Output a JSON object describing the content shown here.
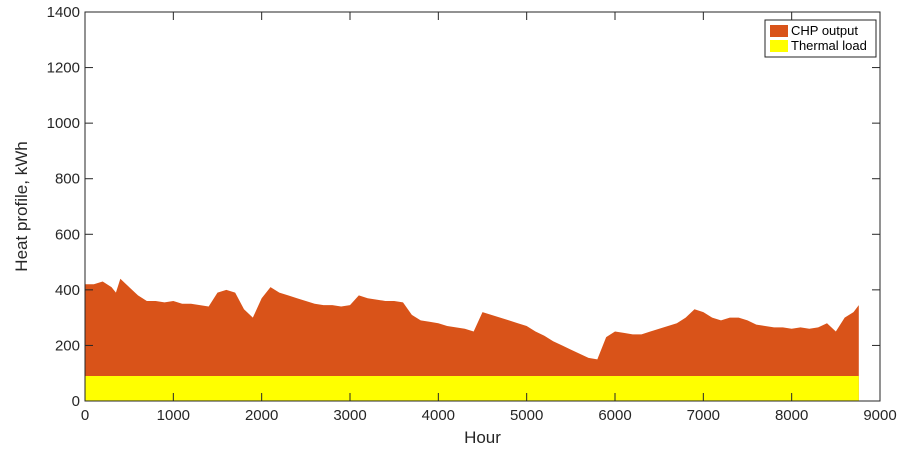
{
  "chart_data": {
    "type": "area",
    "title": "",
    "xlabel": "Hour",
    "ylabel": "Heat profile, kWh",
    "xlim": [
      0,
      9000
    ],
    "ylim": [
      0,
      1400
    ],
    "xticks": [
      0,
      1000,
      2000,
      3000,
      4000,
      5000,
      6000,
      7000,
      8000,
      9000
    ],
    "yticks": [
      0,
      200,
      400,
      600,
      800,
      1000,
      1200,
      1400
    ],
    "grid": false,
    "legend_position": "top-right",
    "series": [
      {
        "name": "CHP output",
        "color": "#D95319",
        "x": [
          0,
          100,
          200,
          300,
          350,
          400,
          500,
          600,
          700,
          800,
          900,
          1000,
          1100,
          1200,
          1300,
          1400,
          1500,
          1600,
          1700,
          1800,
          1900,
          2000,
          2100,
          2200,
          2300,
          2400,
          2500,
          2600,
          2700,
          2800,
          2900,
          3000,
          3100,
          3200,
          3300,
          3400,
          3500,
          3600,
          3700,
          3800,
          3900,
          4000,
          4100,
          4200,
          4300,
          4400,
          4500,
          4600,
          4700,
          4800,
          4900,
          5000,
          5100,
          5200,
          5300,
          5400,
          5500,
          5600,
          5700,
          5800,
          5900,
          6000,
          6100,
          6200,
          6300,
          6400,
          6500,
          6600,
          6700,
          6800,
          6900,
          7000,
          7100,
          7200,
          7300,
          7400,
          7500,
          7600,
          7700,
          7800,
          7900,
          8000,
          8100,
          8200,
          8300,
          8400,
          8500,
          8600,
          8700,
          8760
        ],
        "y": [
          420,
          420,
          430,
          410,
          390,
          440,
          410,
          380,
          360,
          360,
          355,
          360,
          350,
          350,
          345,
          340,
          390,
          400,
          390,
          330,
          300,
          370,
          410,
          390,
          380,
          370,
          360,
          350,
          345,
          345,
          340,
          345,
          380,
          370,
          365,
          360,
          360,
          355,
          310,
          290,
          285,
          280,
          270,
          265,
          260,
          250,
          320,
          310,
          300,
          290,
          280,
          270,
          250,
          235,
          215,
          200,
          185,
          170,
          155,
          150,
          230,
          250,
          245,
          240,
          240,
          250,
          260,
          270,
          280,
          300,
          330,
          320,
          300,
          290,
          300,
          300,
          290,
          275,
          270,
          265,
          265,
          260,
          265,
          260,
          265,
          280,
          250,
          300,
          320,
          345
        ]
      },
      {
        "name": "Thermal load",
        "color": "#FFFF00",
        "x": [
          0,
          8760
        ],
        "y": [
          90,
          90
        ]
      }
    ]
  }
}
